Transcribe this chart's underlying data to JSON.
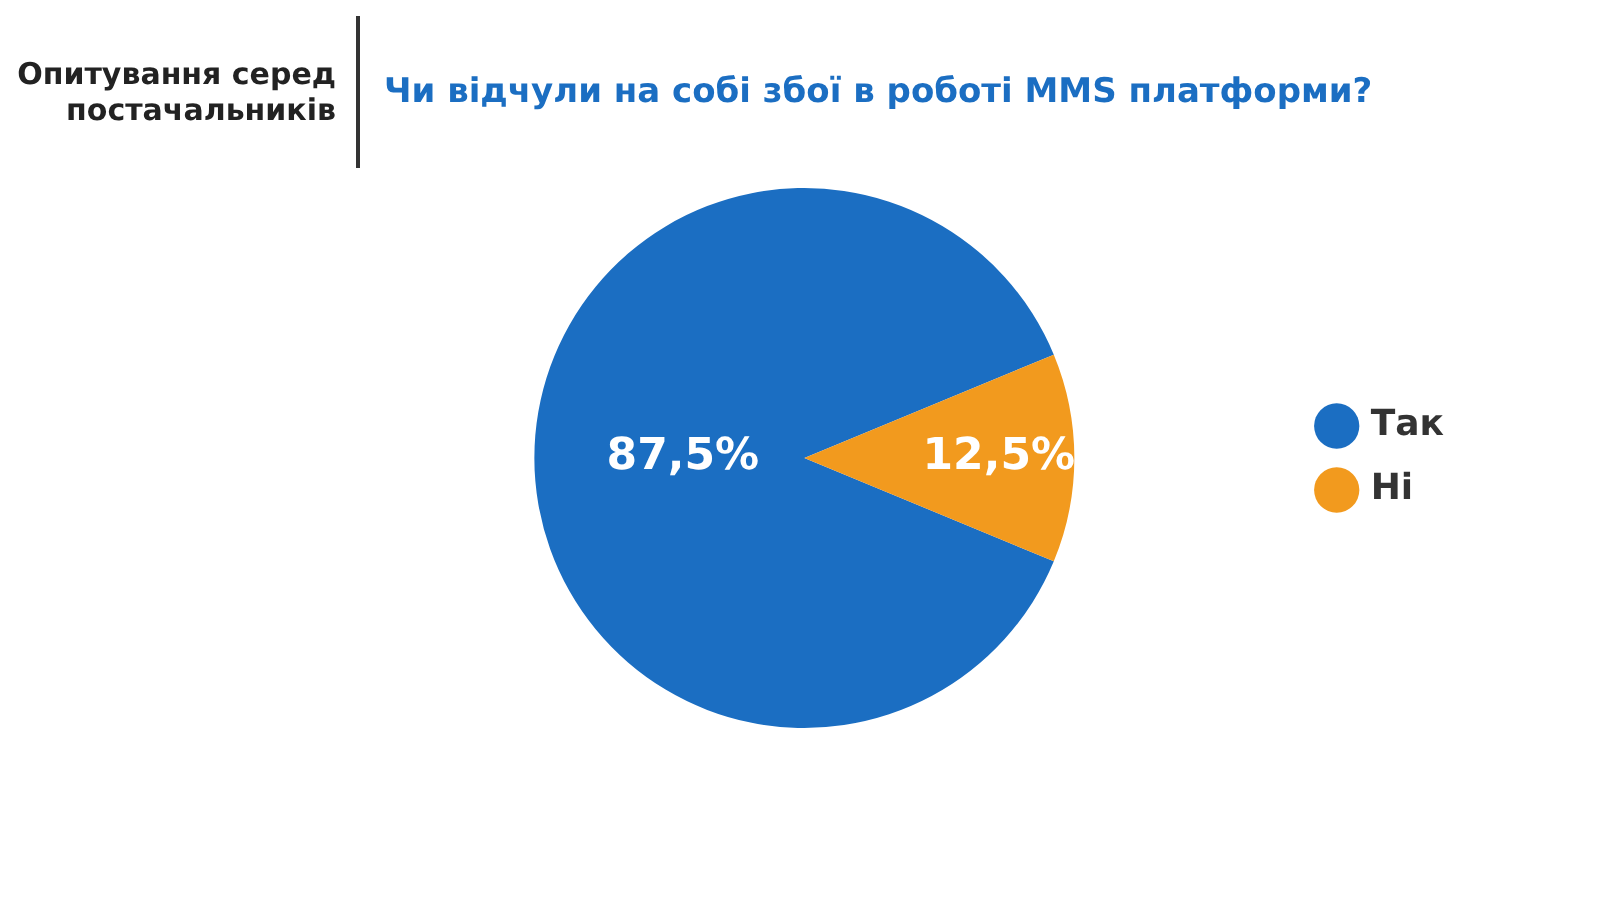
{
  "chart_data": {
    "type": "pie",
    "title": "Чи відчули на собі збої в роботі MMS платформи?",
    "subtitle": "Опитування серед постачальників",
    "categories": [
      "Так",
      "Ні"
    ],
    "values": [
      87.5,
      12.5
    ],
    "value_labels": [
      "87,5%",
      "12,5%"
    ],
    "colors": [
      "#1b6ec2",
      "#f29a1e"
    ],
    "legend": "right"
  }
}
